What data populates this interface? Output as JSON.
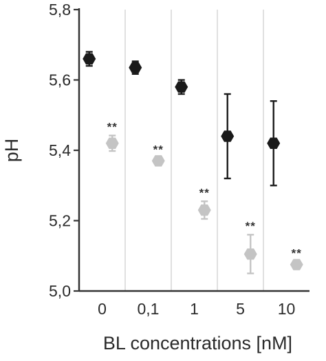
{
  "chart_data": {
    "type": "scatter",
    "xlabel": "BL concentrations [nM]",
    "ylabel": "pH",
    "categories": [
      "0",
      "0,1",
      "1",
      "5",
      "10"
    ],
    "ylim": [
      5.0,
      5.8
    ],
    "yticks": [
      "5,0",
      "5,2",
      "5,4",
      "5,6",
      "5,8"
    ],
    "grid": "vertical separators between categories",
    "series": [
      {
        "color": "#1a1a1a",
        "marker": "hexagon",
        "values": [
          5.66,
          5.635,
          5.58,
          5.44,
          5.42
        ],
        "errors": [
          0.02,
          0.018,
          0.02,
          0.12,
          0.12
        ]
      },
      {
        "color": "#c4c4c4",
        "marker": "hexagon",
        "values": [
          5.42,
          5.37,
          5.23,
          5.105,
          5.075
        ],
        "errors": [
          0.022,
          0.008,
          0.025,
          0.055,
          0.008
        ],
        "annotations": [
          "**",
          "**",
          "**",
          "**",
          "**"
        ]
      }
    ]
  }
}
